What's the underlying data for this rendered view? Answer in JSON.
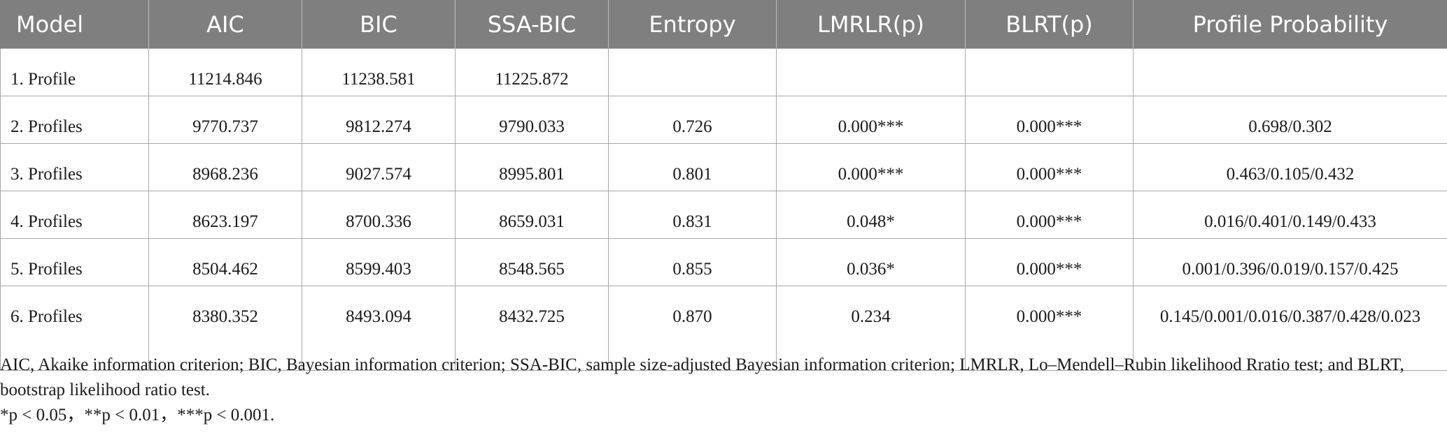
{
  "table": {
    "headers": [
      "Model",
      "AIC",
      "BIC",
      "SSA-BIC",
      "Entropy",
      "LMRLR(p)",
      "BLRT(p)",
      "Profile Probability"
    ],
    "rows": [
      [
        "1. Profile",
        "11214.846",
        "11238.581",
        "11225.872",
        "",
        "",
        "",
        ""
      ],
      [
        "2. Profiles",
        "9770.737",
        "9812.274",
        "9790.033",
        "0.726",
        "0.000***",
        "0.000***",
        "0.698/0.302"
      ],
      [
        "3. Profiles",
        "8968.236",
        "9027.574",
        "8995.801",
        "0.801",
        "0.000***",
        "0.000***",
        "0.463/0.105/0.432"
      ],
      [
        "4. Profiles",
        "8623.197",
        "8700.336",
        "8659.031",
        "0.831",
        "0.048*",
        "0.000***",
        "0.016/0.401/0.149/0.433"
      ],
      [
        "5. Profiles",
        "8504.462",
        "8599.403",
        "8548.565",
        "0.855",
        "0.036*",
        "0.000***",
        "0.001/0.396/0.019/0.157/0.425"
      ],
      [
        "6. Profiles",
        "8380.352",
        "8493.094",
        "8432.725",
        "0.870",
        "0.234",
        "0.000***",
        "0.145/0.001/0.016/0.387/0.428/0.023"
      ]
    ]
  },
  "footnotes": {
    "abbreviations": "AIC, Akaike information criterion; BIC, Bayesian information criterion; SSA-BIC, sample size-adjusted Bayesian information criterion; LMRLR, Lo–Mendell–Rubin likelihood Rratio test; and BLRT, bootstrap likelihood ratio test.",
    "significance": "*p < 0.05，**p < 0.01，***p < 0.001."
  }
}
